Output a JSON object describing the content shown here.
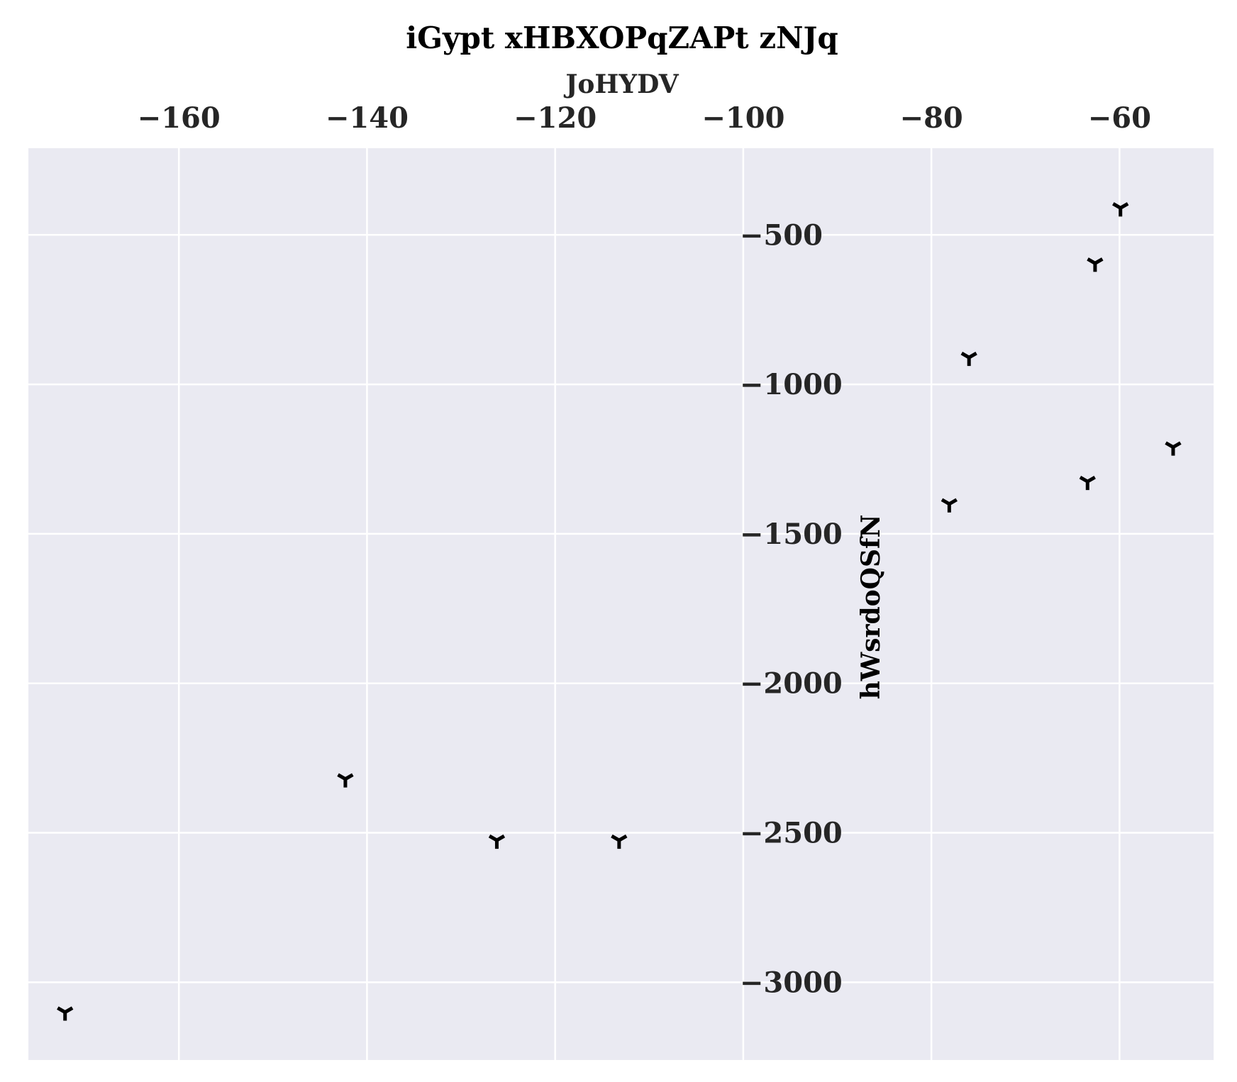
{
  "chart_data": {
    "type": "scatter",
    "title": "iGypt xHBXOPqZAPt zNJq",
    "xlabel": "JoHYDV",
    "ylabel": "hWsrdoQSfN",
    "xlim": [
      -176.0,
      -50.0
    ],
    "ylim": [
      -3260,
      -210
    ],
    "x_ticks": [
      -160,
      -140,
      -120,
      -100,
      -80,
      -60
    ],
    "x_tick_labels": [
      "−160",
      "−140",
      "−120",
      "−100",
      "−80",
      "−60"
    ],
    "y_ticks": [
      -500,
      -1000,
      -1500,
      -2000,
      -2500,
      -3000
    ],
    "y_tick_labels": [
      "−500",
      "−1000",
      "−1500",
      "−2000",
      "−2500",
      "−3000"
    ],
    "grid": true,
    "marker": "tri_down",
    "colors": {
      "background": "#eaeaf2",
      "grid": "#ffffff",
      "marker": "#000000"
    },
    "series": [
      {
        "x": [
          -59.9,
          -62.6,
          -76.0,
          -54.3,
          -63.4,
          -78.1,
          -142.3,
          -126.2,
          -113.2,
          -172.1
        ],
        "y": [
          -410,
          -595,
          -910,
          -1210,
          -1325,
          -1400,
          -2320,
          -2525,
          -2525,
          -3100
        ]
      }
    ]
  }
}
